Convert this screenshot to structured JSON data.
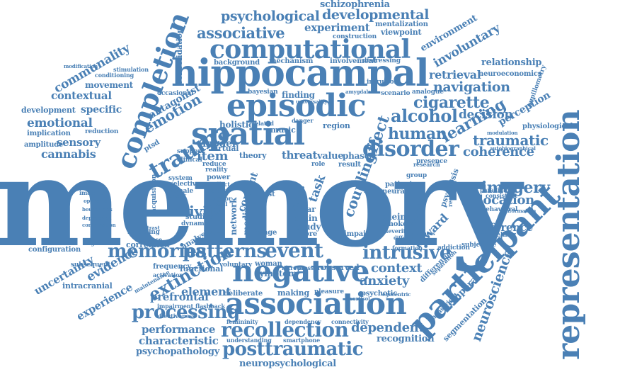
{
  "accent_color": "#4a80b5",
  "words": [
    {
      "id": "memory",
      "text": "memory"
    },
    {
      "id": "hippocampal",
      "text": "hippocampal"
    },
    {
      "id": "computational",
      "text": "computational"
    },
    {
      "id": "episodic",
      "text": "episodic"
    },
    {
      "id": "spatial",
      "text": "spatial"
    },
    {
      "id": "negative",
      "text": "negative"
    },
    {
      "id": "association",
      "text": "association"
    },
    {
      "id": "participant",
      "text": "participant"
    },
    {
      "id": "representation",
      "text": "representation"
    },
    {
      "id": "completion",
      "text": "completion"
    },
    {
      "id": "disorder",
      "text": "disorder"
    },
    {
      "id": "trauma",
      "text": "trauma"
    },
    {
      "id": "memories",
      "text": "memories"
    },
    {
      "id": "patterns",
      "text": "patterns"
    },
    {
      "id": "event",
      "text": "event"
    },
    {
      "id": "intrusive",
      "text": "intrusive"
    },
    {
      "id": "processing",
      "text": "processing"
    },
    {
      "id": "recollection",
      "text": "recollection"
    },
    {
      "id": "posttraumatic",
      "text": "posttraumatic"
    },
    {
      "id": "extinction",
      "text": "extinction"
    },
    {
      "id": "psychological",
      "text": "psychological"
    },
    {
      "id": "developmental",
      "text": "developmental"
    },
    {
      "id": "schizophrenia",
      "text": "schizophrenia"
    },
    {
      "id": "associative",
      "text": "associative"
    },
    {
      "id": "experiment",
      "text": "experiment"
    },
    {
      "id": "navigation",
      "text": "navigation"
    },
    {
      "id": "cigarette",
      "text": "cigarette"
    },
    {
      "id": "alcohol",
      "text": "alcohol"
    },
    {
      "id": "human",
      "text": "human"
    },
    {
      "id": "learning",
      "text": "learning"
    },
    {
      "id": "traumatic",
      "text": "traumatic"
    },
    {
      "id": "coherence",
      "text": "coherence"
    },
    {
      "id": "imagery",
      "text": "imagery"
    },
    {
      "id": "location",
      "text": "location"
    },
    {
      "id": "inference",
      "text": "inference"
    },
    {
      "id": "neuroscience",
      "text": "neuroscience"
    },
    {
      "id": "dependent",
      "text": "dependent"
    },
    {
      "id": "recognition",
      "text": "recognition"
    },
    {
      "id": "neuropsychological",
      "text": "neuropsychological"
    },
    {
      "id": "performance",
      "text": "performance"
    },
    {
      "id": "characteristic",
      "text": "characteristic"
    },
    {
      "id": "psychopathology",
      "text": "psychopathology"
    },
    {
      "id": "prefrontal",
      "text": "prefrontal"
    },
    {
      "id": "element",
      "text": "element"
    },
    {
      "id": "evidence",
      "text": "evidence"
    },
    {
      "id": "uncertainty",
      "text": "uncertainty"
    },
    {
      "id": "experience",
      "text": "experience"
    },
    {
      "id": "emotion",
      "text": "emotion"
    },
    {
      "id": "emotional",
      "text": "emotional"
    },
    {
      "id": "contextual",
      "text": "contextual"
    },
    {
      "id": "communality",
      "text": "communality"
    },
    {
      "id": "movement",
      "text": "movement"
    },
    {
      "id": "sensory",
      "text": "sensory"
    },
    {
      "id": "cannabis",
      "text": "cannabis"
    },
    {
      "id": "specific",
      "text": "specific"
    },
    {
      "id": "development",
      "text": "development"
    },
    {
      "id": "implication",
      "text": "implication"
    },
    {
      "id": "amplitude",
      "text": "amplitude"
    },
    {
      "id": "activity",
      "text": "activity"
    },
    {
      "id": "item",
      "text": "item"
    },
    {
      "id": "model",
      "text": "model"
    },
    {
      "id": "symptom",
      "text": "symptom"
    },
    {
      "id": "context",
      "text": "context"
    },
    {
      "id": "anxiety",
      "text": "anxiety"
    },
    {
      "id": "decision",
      "text": "decision"
    },
    {
      "id": "retrieval",
      "text": "retrieval"
    },
    {
      "id": "relationship",
      "text": "relationship"
    },
    {
      "id": "involuntary",
      "text": "involuntary"
    },
    {
      "id": "environment",
      "text": "environment"
    },
    {
      "id": "perception",
      "text": "perception"
    },
    {
      "id": "physiological",
      "text": "physiological"
    },
    {
      "id": "reward",
      "text": "reward"
    },
    {
      "id": "effect",
      "text": "effect"
    },
    {
      "id": "coupling",
      "text": "coupling"
    },
    {
      "id": "mentalization",
      "text": "mentalization"
    },
    {
      "id": "viewpoint",
      "text": "viewpoint"
    },
    {
      "id": "construction",
      "text": "construction"
    },
    {
      "id": "background",
      "text": "background"
    },
    {
      "id": "mechanism",
      "text": "mechanism"
    },
    {
      "id": "involvement",
      "text": "involvement"
    },
    {
      "id": "neuroeconomics",
      "text": "neuroeconomics"
    },
    {
      "id": "consolidation",
      "text": "consolidation"
    },
    {
      "id": "antagonist",
      "text": "antagonist"
    },
    {
      "id": "threat",
      "text": "threat"
    },
    {
      "id": "value",
      "text": "value"
    },
    {
      "id": "phase",
      "text": "phase"
    },
    {
      "id": "result",
      "text": "result"
    },
    {
      "id": "functional",
      "text": "functional"
    },
    {
      "id": "making",
      "text": "making"
    },
    {
      "id": "observed",
      "text": "observed"
    },
    {
      "id": "analysis",
      "text": "analysis"
    },
    {
      "id": "correlated",
      "text": "correlated"
    },
    {
      "id": "configuration",
      "text": "configuration"
    },
    {
      "id": "intracranial",
      "text": "intracranial"
    },
    {
      "id": "frequency",
      "text": "frequency"
    },
    {
      "id": "subsequent",
      "text": "subsequent"
    },
    {
      "id": "addiction",
      "text": "addiction"
    },
    {
      "id": "subjective",
      "text": "subjective"
    },
    {
      "id": "temporal",
      "text": "temporal"
    },
    {
      "id": "segmentation",
      "text": "segmentation"
    },
    {
      "id": "maastricht",
      "text": "maastricht"
    },
    {
      "id": "differential",
      "text": "differential"
    },
    {
      "id": "psychotic",
      "text": "psychotic"
    },
    {
      "id": "deliberate",
      "text": "deliberate"
    },
    {
      "id": "pleasure",
      "text": "pleasure"
    },
    {
      "id": "woman",
      "text": "woman"
    },
    {
      "id": "voluntary",
      "text": "voluntary"
    },
    {
      "id": "function",
      "text": "function"
    },
    {
      "id": "holistic",
      "text": "holistic"
    },
    {
      "id": "music",
      "text": "music"
    },
    {
      "id": "region",
      "text": "region"
    },
    {
      "id": "virtual",
      "text": "virtual"
    },
    {
      "id": "theory",
      "text": "theory"
    },
    {
      "id": "network",
      "text": "network"
    },
    {
      "id": "content",
      "text": "content"
    },
    {
      "id": "ptsd",
      "text": "ptsd"
    },
    {
      "id": "task",
      "text": "task"
    },
    {
      "id": "brain",
      "text": "brain"
    },
    {
      "id": "study",
      "text": "study"
    },
    {
      "id": "fear",
      "text": "fear"
    },
    {
      "id": "image",
      "text": "image"
    },
    {
      "id": "more",
      "text": "more"
    },
    {
      "id": "impair",
      "text": "impair"
    },
    {
      "id": "cueing",
      "text": "cueing"
    },
    {
      "id": "smoker",
      "text": "smoker"
    },
    {
      "id": "neural",
      "text": "neural"
    },
    {
      "id": "patient",
      "text": "patient"
    },
    {
      "id": "test",
      "text": "test"
    },
    {
      "id": "psychosis",
      "text": "psychosis"
    },
    {
      "id": "bayesian",
      "text": "bayesian"
    },
    {
      "id": "finding",
      "text": "finding"
    },
    {
      "id": "distressing",
      "text": "distressing"
    },
    {
      "id": "scenario",
      "text": "scenario"
    },
    {
      "id": "analogue",
      "text": "analogue"
    },
    {
      "id": "intrusion",
      "text": "intrusion"
    },
    {
      "id": "presence",
      "text": "presence"
    },
    {
      "id": "stimulation",
      "text": "stimulation"
    },
    {
      "id": "conditioning",
      "text": "conditioning"
    },
    {
      "id": "reduction",
      "text": "reduction"
    },
    {
      "id": "occasional",
      "text": "occasional"
    },
    {
      "id": "support",
      "text": "support"
    },
    {
      "id": "modeling",
      "text": "modeling"
    },
    {
      "id": "modelling",
      "text": "modelling"
    },
    {
      "id": "behavioral",
      "text": "behavioral"
    },
    {
      "id": "system",
      "text": "system"
    },
    {
      "id": "reality",
      "text": "reality"
    },
    {
      "id": "power",
      "text": "power"
    },
    {
      "id": "acquisition",
      "text": "acquisition"
    },
    {
      "id": "studies",
      "text": "studies"
    },
    {
      "id": "dynamic",
      "text": "dynamic"
    },
    {
      "id": "imagined",
      "text": "imagined"
    },
    {
      "id": "female",
      "text": "female"
    },
    {
      "id": "adult",
      "text": "adult"
    },
    {
      "id": "clinical",
      "text": "clinical"
    },
    {
      "id": "reduce",
      "text": "reduce"
    },
    {
      "id": "selective",
      "text": "selective"
    },
    {
      "id": "pupillometry",
      "text": "pupillometry"
    },
    {
      "id": "role",
      "text": "role"
    },
    {
      "id": "impairment",
      "text": "impairment"
    },
    {
      "id": "flashback",
      "text": "flashback"
    },
    {
      "id": "femininity",
      "text": "femininity"
    },
    {
      "id": "understanding",
      "text": "understanding"
    },
    {
      "id": "dependency",
      "text": "dependency"
    },
    {
      "id": "smartphone",
      "text": "smartphone"
    },
    {
      "id": "connectivity",
      "text": "connectivity"
    },
    {
      "id": "effectiveness",
      "text": "effectiveness"
    },
    {
      "id": "maintenance",
      "text": "maintenance"
    },
    {
      "id": "vigilance",
      "text": "vigilance"
    },
    {
      "id": "activation",
      "text": "activation"
    },
    {
      "id": "formation",
      "text": "formation"
    },
    {
      "id": "separation",
      "text": "separation"
    },
    {
      "id": "severity",
      "text": "severity"
    },
    {
      "id": "paradigm",
      "text": "paradigm"
    },
    {
      "id": "consistent",
      "text": "consistent"
    },
    {
      "id": "research",
      "text": "research"
    },
    {
      "id": "autobiographical",
      "text": "autobiographical"
    },
    {
      "id": "modulation",
      "text": "modulation"
    },
    {
      "id": "information",
      "text": "information"
    },
    {
      "id": "group",
      "text": "group"
    },
    {
      "id": "neutral",
      "text": "neutral"
    },
    {
      "id": "stress",
      "text": "stress"
    },
    {
      "id": "danger",
      "text": "danger"
    },
    {
      "id": "related",
      "text": "related"
    },
    {
      "id": "visual",
      "text": "visual"
    },
    {
      "id": "shock",
      "text": "shock"
    },
    {
      "id": "affect",
      "text": "affect"
    },
    {
      "id": "vector",
      "text": "vector"
    },
    {
      "id": "medial",
      "text": "medial"
    },
    {
      "id": "significant",
      "text": "significant"
    },
    {
      "id": "depression",
      "text": "depression"
    },
    {
      "id": "combination",
      "text": "combination"
    },
    {
      "id": "boundaries",
      "text": "boundaries"
    },
    {
      "id": "opposing",
      "text": "opposing"
    },
    {
      "id": "modification",
      "text": "modification"
    },
    {
      "id": "contrast",
      "text": "contrast"
    },
    {
      "id": "vividness",
      "text": "vividness"
    },
    {
      "id": "response",
      "text": "response"
    },
    {
      "id": "cortisol",
      "text": "cortisol"
    },
    {
      "id": "nitrous",
      "text": "nitrous"
    },
    {
      "id": "pressure",
      "text": "pressure"
    },
    {
      "id": "egocentric",
      "text": "egocentric"
    },
    {
      "id": "different",
      "text": "different"
    },
    {
      "id": "amygdalar",
      "text": "amygdalar"
    },
    {
      "id": "universality",
      "text": "universality"
    }
  ]
}
